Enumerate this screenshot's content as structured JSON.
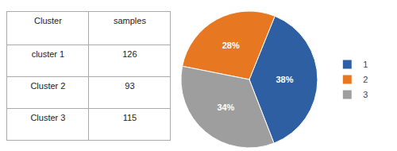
{
  "chart_data": [
    {
      "type": "table",
      "columns": [
        "Cluster",
        "samples"
      ],
      "rows": [
        [
          "cluster 1",
          "126"
        ],
        [
          "Cluster 2",
          "93"
        ],
        [
          "Cluster 3",
          "115"
        ]
      ]
    },
    {
      "type": "pie",
      "categories": [
        "1",
        "2",
        "3"
      ],
      "values": [
        38,
        28,
        34
      ],
      "value_labels": [
        "38%",
        "28%",
        "34%"
      ],
      "colors": [
        "#2E5FA3",
        "#E87722",
        "#9E9E9E"
      ],
      "data_labels": true,
      "legend": "right"
    }
  ]
}
